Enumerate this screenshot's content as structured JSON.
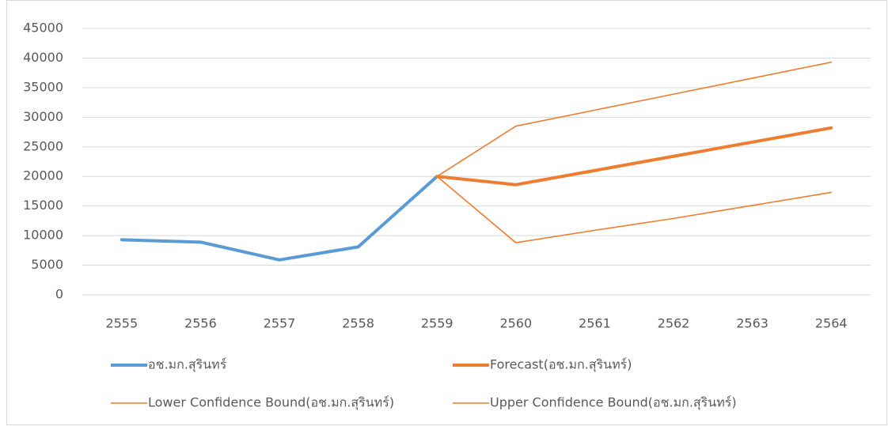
{
  "chart_data": {
    "type": "line",
    "categories": [
      "2555",
      "2556",
      "2557",
      "2558",
      "2559",
      "2560",
      "2561",
      "2562",
      "2563",
      "2564"
    ],
    "series": [
      {
        "name": "อช.มก.สุรินทร์",
        "color": "#5b9bd5",
        "values": [
          9300,
          8900,
          5900,
          8100,
          20000,
          null,
          null,
          null,
          null,
          null
        ]
      },
      {
        "name": "Forecast(อช.มก.สุรินทร์)",
        "color": "#ed7d31",
        "values": [
          null,
          null,
          null,
          null,
          20000,
          18600,
          21000,
          23400,
          25800,
          28200
        ]
      },
      {
        "name": "Lower Confidence Bound(อช.มก.สุรินทร์)",
        "color": "#ed7d31",
        "values": [
          null,
          null,
          null,
          null,
          20000,
          8800,
          10900,
          12900,
          15100,
          17300
        ]
      },
      {
        "name": "Upper Confidence Bound(อช.มก.สุรินทร์)",
        "color": "#ed7d31",
        "values": [
          null,
          null,
          null,
          null,
          20000,
          28500,
          31200,
          33900,
          36600,
          39300
        ]
      }
    ],
    "ylim": [
      0,
      45000
    ],
    "yticks": [
      0,
      5000,
      10000,
      15000,
      20000,
      25000,
      30000,
      35000,
      40000,
      45000
    ],
    "grid": true,
    "legend": "bottom"
  }
}
